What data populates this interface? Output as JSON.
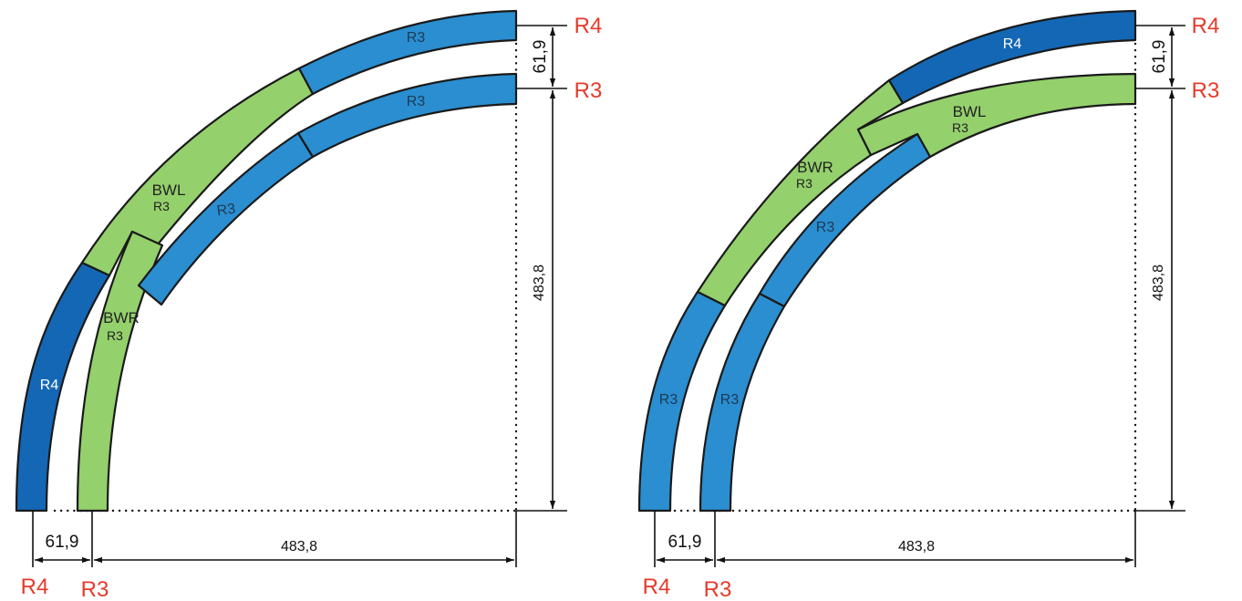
{
  "colors": {
    "r3_blue": "#2a8ed0",
    "r4_blue": "#1467b5",
    "switch_green": "#94d06c",
    "tag_red": "#e63a2a",
    "outline": "#1a1a1a"
  },
  "left_diagram": {
    "segments": {
      "top_outer": "R3",
      "top_inner": "R3",
      "mid_inner": "R3",
      "r4_vertical": "R4",
      "bwl_name": "BWL",
      "bwl_radius": "R3",
      "bwr_name": "BWR",
      "bwr_radius": "R3"
    },
    "dims": {
      "gap_horizontal": "61,9",
      "radius_horizontal": "483,8",
      "gap_vertical": "61,9",
      "radius_vertical": "483,8"
    },
    "tags": {
      "right_top": "R4",
      "right_bottom": "R3",
      "bottom_left": "R4",
      "bottom_right": "R3"
    }
  },
  "right_diagram": {
    "segments": {
      "top_outer": "R4",
      "bwl_name": "BWL",
      "bwl_radius": "R3",
      "bwr_name": "BWR",
      "bwr_radius": "R3",
      "inner_upper": "R3",
      "outer_lower": "R3",
      "inner_lower": "R3"
    },
    "dims": {
      "gap_horizontal": "61,9",
      "radius_horizontal": "483,8",
      "gap_vertical": "61,9",
      "radius_vertical": "483,8"
    },
    "tags": {
      "right_top": "R4",
      "right_bottom": "R3",
      "bottom_left": "R4",
      "bottom_right": "R3"
    }
  }
}
